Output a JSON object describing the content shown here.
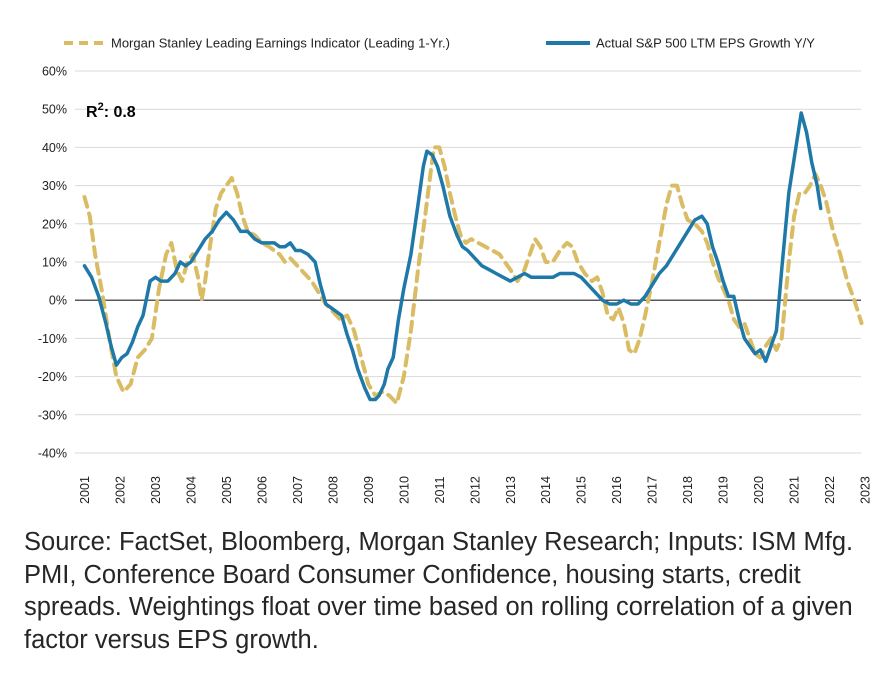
{
  "chart_data": {
    "type": "line",
    "x_unit": "year",
    "x_ticks": [
      "2001",
      "2002",
      "2003",
      "2004",
      "2005",
      "2006",
      "2007",
      "2008",
      "2009",
      "2010",
      "2011",
      "2012",
      "2013",
      "2014",
      "2015",
      "2016",
      "2017",
      "2018",
      "2019",
      "2020",
      "2021",
      "2022",
      "2023"
    ],
    "y_ticks": [
      "60%",
      "50%",
      "40%",
      "30%",
      "20%",
      "10%",
      "0%",
      "-10%",
      "-20%",
      "-30%",
      "-40%"
    ],
    "ylim": [
      -40,
      60
    ],
    "xlim": [
      2001,
      2023.6
    ],
    "annotation": {
      "base": "R",
      "sup": "2",
      "rest": ": 0.8"
    },
    "legend_position": "top",
    "series": [
      {
        "name": "Morgan Stanley Leading Earnings Indicator (Leading 1-Yr.)",
        "style": "dashed",
        "color": "#D9BC64",
        "points": [
          [
            2001.0,
            27
          ],
          [
            2001.15,
            22
          ],
          [
            2001.3,
            12
          ],
          [
            2001.5,
            2
          ],
          [
            2001.7,
            -10
          ],
          [
            2001.9,
            -20
          ],
          [
            2002.1,
            -24
          ],
          [
            2002.3,
            -22
          ],
          [
            2002.5,
            -15
          ],
          [
            2002.7,
            -13
          ],
          [
            2002.9,
            -10
          ],
          [
            2003.1,
            3
          ],
          [
            2003.3,
            12
          ],
          [
            2003.45,
            15
          ],
          [
            2003.6,
            8
          ],
          [
            2003.75,
            5
          ],
          [
            2003.9,
            10
          ],
          [
            2004.05,
            12
          ],
          [
            2004.2,
            6
          ],
          [
            2004.3,
            0
          ],
          [
            2004.4,
            5
          ],
          [
            2004.55,
            15
          ],
          [
            2004.7,
            24
          ],
          [
            2004.85,
            28
          ],
          [
            2005.0,
            30
          ],
          [
            2005.15,
            32
          ],
          [
            2005.3,
            28
          ],
          [
            2005.45,
            22
          ],
          [
            2005.6,
            18
          ],
          [
            2005.8,
            17
          ],
          [
            2006.0,
            15
          ],
          [
            2006.2,
            14
          ],
          [
            2006.35,
            13
          ],
          [
            2006.5,
            12
          ],
          [
            2006.65,
            10
          ],
          [
            2006.8,
            11
          ],
          [
            2007.0,
            9
          ],
          [
            2007.2,
            7
          ],
          [
            2007.4,
            5
          ],
          [
            2007.6,
            2
          ],
          [
            2007.8,
            -1
          ],
          [
            2008.0,
            -3
          ],
          [
            2008.2,
            -5
          ],
          [
            2008.4,
            -4
          ],
          [
            2008.6,
            -8
          ],
          [
            2008.8,
            -15
          ],
          [
            2009.0,
            -22
          ],
          [
            2009.2,
            -25
          ],
          [
            2009.4,
            -24
          ],
          [
            2009.6,
            -25
          ],
          [
            2009.8,
            -27
          ],
          [
            2010.0,
            -20
          ],
          [
            2010.2,
            -8
          ],
          [
            2010.4,
            8
          ],
          [
            2010.6,
            22
          ],
          [
            2010.75,
            33
          ],
          [
            2010.85,
            40
          ],
          [
            2011.0,
            40
          ],
          [
            2011.15,
            35
          ],
          [
            2011.3,
            28
          ],
          [
            2011.45,
            22
          ],
          [
            2011.6,
            17
          ],
          [
            2011.75,
            15
          ],
          [
            2011.9,
            16
          ],
          [
            2012.1,
            15
          ],
          [
            2012.3,
            14
          ],
          [
            2012.5,
            13
          ],
          [
            2012.7,
            12
          ],
          [
            2012.85,
            10
          ],
          [
            2013.0,
            8
          ],
          [
            2013.2,
            5
          ],
          [
            2013.4,
            8
          ],
          [
            2013.55,
            12
          ],
          [
            2013.7,
            16
          ],
          [
            2013.85,
            14
          ],
          [
            2014.0,
            10
          ],
          [
            2014.2,
            10
          ],
          [
            2014.4,
            13
          ],
          [
            2014.6,
            15
          ],
          [
            2014.75,
            14
          ],
          [
            2014.9,
            10
          ],
          [
            2015.1,
            7
          ],
          [
            2015.3,
            5
          ],
          [
            2015.45,
            6
          ],
          [
            2015.6,
            2
          ],
          [
            2015.75,
            -4
          ],
          [
            2015.9,
            -5
          ],
          [
            2016.05,
            -2
          ],
          [
            2016.2,
            -6
          ],
          [
            2016.35,
            -13
          ],
          [
            2016.5,
            -14
          ],
          [
            2016.65,
            -10
          ],
          [
            2016.8,
            -4
          ],
          [
            2017.0,
            5
          ],
          [
            2017.2,
            15
          ],
          [
            2017.4,
            25
          ],
          [
            2017.55,
            30
          ],
          [
            2017.7,
            30
          ],
          [
            2017.85,
            25
          ],
          [
            2018.0,
            21
          ],
          [
            2018.2,
            20
          ],
          [
            2018.4,
            18
          ],
          [
            2018.55,
            15
          ],
          [
            2018.7,
            10
          ],
          [
            2018.85,
            6
          ],
          [
            2019.0,
            3
          ],
          [
            2019.15,
            0
          ],
          [
            2019.3,
            -5
          ],
          [
            2019.45,
            -7
          ],
          [
            2019.6,
            -6
          ],
          [
            2019.75,
            -10
          ],
          [
            2019.9,
            -14
          ],
          [
            2020.05,
            -15
          ],
          [
            2020.2,
            -12
          ],
          [
            2020.35,
            -10
          ],
          [
            2020.5,
            -13
          ],
          [
            2020.65,
            -10
          ],
          [
            2020.85,
            10
          ],
          [
            2021.0,
            22
          ],
          [
            2021.15,
            28
          ],
          [
            2021.3,
            28
          ],
          [
            2021.45,
            30
          ],
          [
            2021.6,
            33
          ],
          [
            2021.75,
            30
          ],
          [
            2021.9,
            26
          ],
          [
            2022.1,
            18
          ],
          [
            2022.3,
            12
          ],
          [
            2022.5,
            5
          ],
          [
            2022.7,
            0
          ],
          [
            2022.9,
            -6
          ]
        ]
      },
      {
        "name": "Actual S&P 500 LTM EPS Growth Y/Y",
        "style": "solid",
        "color": "#1F79A8",
        "points": [
          [
            2001.0,
            9
          ],
          [
            2001.2,
            6
          ],
          [
            2001.4,
            1
          ],
          [
            2001.6,
            -6
          ],
          [
            2001.75,
            -12
          ],
          [
            2001.9,
            -17
          ],
          [
            2002.05,
            -15
          ],
          [
            2002.2,
            -14
          ],
          [
            2002.35,
            -11
          ],
          [
            2002.5,
            -7
          ],
          [
            2002.65,
            -4
          ],
          [
            2002.85,
            5
          ],
          [
            2003.0,
            6
          ],
          [
            2003.15,
            5
          ],
          [
            2003.35,
            5
          ],
          [
            2003.55,
            7
          ],
          [
            2003.7,
            10
          ],
          [
            2003.85,
            9
          ],
          [
            2004.0,
            10
          ],
          [
            2004.2,
            13
          ],
          [
            2004.4,
            16
          ],
          [
            2004.6,
            18
          ],
          [
            2004.8,
            21
          ],
          [
            2005.0,
            23
          ],
          [
            2005.2,
            21
          ],
          [
            2005.4,
            18
          ],
          [
            2005.6,
            18
          ],
          [
            2005.8,
            16
          ],
          [
            2006.0,
            15
          ],
          [
            2006.2,
            15
          ],
          [
            2006.35,
            15
          ],
          [
            2006.5,
            14
          ],
          [
            2006.65,
            14
          ],
          [
            2006.8,
            15
          ],
          [
            2006.95,
            13
          ],
          [
            2007.1,
            13
          ],
          [
            2007.3,
            12
          ],
          [
            2007.5,
            10
          ],
          [
            2007.65,
            4
          ],
          [
            2007.8,
            -1
          ],
          [
            2007.95,
            -2
          ],
          [
            2008.1,
            -3
          ],
          [
            2008.25,
            -4
          ],
          [
            2008.4,
            -9
          ],
          [
            2008.55,
            -13
          ],
          [
            2008.7,
            -18
          ],
          [
            2008.9,
            -23
          ],
          [
            2009.05,
            -26
          ],
          [
            2009.2,
            -26
          ],
          [
            2009.3,
            -25
          ],
          [
            2009.45,
            -22
          ],
          [
            2009.55,
            -18
          ],
          [
            2009.7,
            -15
          ],
          [
            2009.85,
            -5
          ],
          [
            2010.0,
            3
          ],
          [
            2010.2,
            12
          ],
          [
            2010.4,
            25
          ],
          [
            2010.55,
            35
          ],
          [
            2010.65,
            39
          ],
          [
            2010.8,
            38
          ],
          [
            2010.95,
            35
          ],
          [
            2011.1,
            30
          ],
          [
            2011.3,
            22
          ],
          [
            2011.5,
            17
          ],
          [
            2011.65,
            14
          ],
          [
            2011.8,
            13
          ],
          [
            2012.0,
            11
          ],
          [
            2012.2,
            9
          ],
          [
            2012.4,
            8
          ],
          [
            2012.6,
            7
          ],
          [
            2012.8,
            6
          ],
          [
            2013.0,
            5
          ],
          [
            2013.2,
            6
          ],
          [
            2013.4,
            7
          ],
          [
            2013.6,
            6
          ],
          [
            2013.8,
            6
          ],
          [
            2014.0,
            6
          ],
          [
            2014.2,
            6
          ],
          [
            2014.4,
            7
          ],
          [
            2014.6,
            7
          ],
          [
            2014.8,
            7
          ],
          [
            2015.0,
            6
          ],
          [
            2015.2,
            4
          ],
          [
            2015.4,
            2
          ],
          [
            2015.6,
            0
          ],
          [
            2015.8,
            -1
          ],
          [
            2016.0,
            -1
          ],
          [
            2016.2,
            0
          ],
          [
            2016.4,
            -1
          ],
          [
            2016.6,
            -1
          ],
          [
            2016.8,
            1
          ],
          [
            2017.0,
            4
          ],
          [
            2017.2,
            7
          ],
          [
            2017.4,
            9
          ],
          [
            2017.6,
            12
          ],
          [
            2017.8,
            15
          ],
          [
            2018.0,
            18
          ],
          [
            2018.2,
            21
          ],
          [
            2018.4,
            22
          ],
          [
            2018.55,
            20
          ],
          [
            2018.7,
            14
          ],
          [
            2018.85,
            10
          ],
          [
            2019.0,
            5
          ],
          [
            2019.15,
            1
          ],
          [
            2019.3,
            1
          ],
          [
            2019.45,
            -5
          ],
          [
            2019.6,
            -10
          ],
          [
            2019.75,
            -12
          ],
          [
            2019.9,
            -14
          ],
          [
            2020.05,
            -13
          ],
          [
            2020.2,
            -16
          ],
          [
            2020.35,
            -12
          ],
          [
            2020.5,
            -8
          ],
          [
            2020.65,
            8
          ],
          [
            2020.85,
            28
          ],
          [
            2021.05,
            40
          ],
          [
            2021.2,
            49
          ],
          [
            2021.35,
            44
          ],
          [
            2021.5,
            36
          ],
          [
            2021.65,
            30
          ],
          [
            2021.75,
            24
          ]
        ]
      }
    ]
  },
  "source_text": "Source: FactSet, Bloomberg, Morgan Stanley Research; Inputs: ISM Mfg. PMI, Conference Board Consumer Confidence, housing starts, credit spreads. Weightings float over time based on rolling correlation of a given factor versus EPS growth."
}
